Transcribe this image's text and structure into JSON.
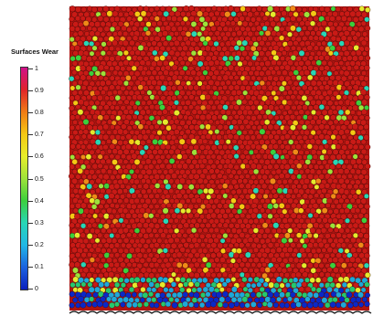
{
  "legend": {
    "title": "Surfaces Wear",
    "ticks": [
      "1",
      "0.9",
      "0.8",
      "0.7",
      "0.6",
      "0.5",
      "0.4",
      "0.3",
      "0.2",
      "0.1",
      "0"
    ],
    "colors": [
      "#d0108a",
      "#e0242a",
      "#f07c16",
      "#f5c814",
      "#e8ee2a",
      "#9ee23a",
      "#3ccf3c",
      "#28d6b6",
      "#21b8e6",
      "#1b62e0",
      "#0a1fbd"
    ]
  },
  "scene": {
    "dominant_color": "#c91a16",
    "bottom_band_colors": [
      "#0a28c8",
      "#1ea8d8",
      "#26c86e"
    ],
    "description_of_fill": "Granular particles colored by surface wear"
  }
}
